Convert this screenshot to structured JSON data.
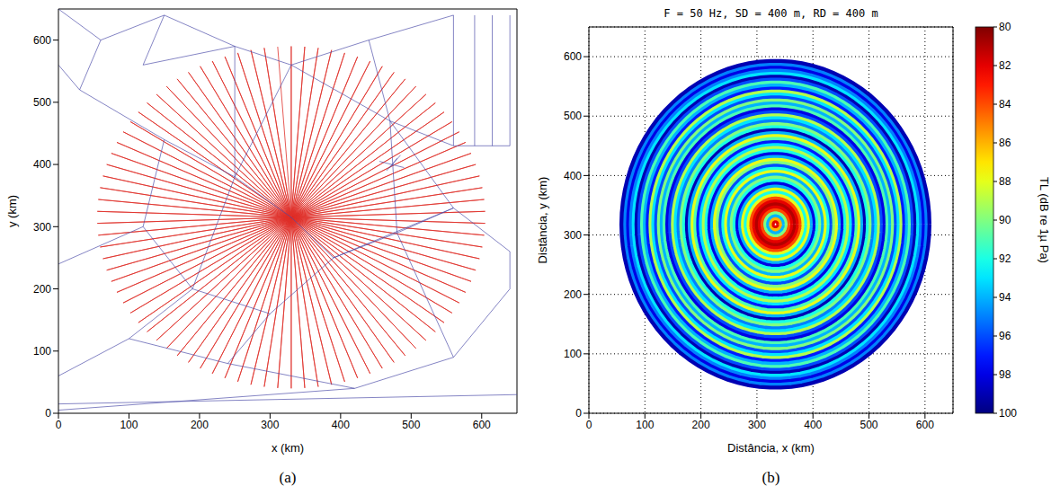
{
  "chart_data": [
    {
      "type": "mesh",
      "panel": "(a)",
      "x_label": "x (km)",
      "y_label": "y (km)",
      "xlim": [
        0,
        650
      ],
      "ylim": [
        0,
        650
      ],
      "xticks": [
        0,
        100,
        200,
        300,
        400,
        500,
        600
      ],
      "yticks": [
        0,
        100,
        200,
        300,
        400,
        500,
        600
      ],
      "grid": false,
      "radials": {
        "color": "#e0302a",
        "center": [
          330,
          315
        ],
        "radius": 275,
        "bearings": [
          0,
          4,
          8,
          12,
          16,
          20,
          24,
          28,
          32,
          36,
          40,
          44,
          48,
          52,
          56,
          60,
          64,
          68,
          72,
          76,
          80,
          84,
          88,
          92,
          96,
          100,
          104,
          108,
          112,
          116,
          120,
          124,
          128,
          132,
          136,
          140,
          144,
          148,
          152,
          156,
          160,
          164,
          168,
          172,
          176,
          180,
          184,
          188,
          192,
          196,
          200,
          204,
          208,
          212,
          216,
          220,
          224,
          228,
          232,
          236,
          240,
          244,
          248,
          252,
          256,
          260,
          264,
          268,
          272,
          276,
          280,
          284,
          288,
          292,
          296,
          300,
          304,
          308,
          312,
          316,
          320,
          324,
          328,
          332,
          336,
          340,
          344,
          348,
          352,
          356
        ]
      },
      "mesh": {
        "color": "#4a4aa8",
        "segments": [
          [
            0,
            650,
            60,
            600
          ],
          [
            60,
            600,
            30,
            520
          ],
          [
            30,
            520,
            0,
            560
          ],
          [
            60,
            600,
            150,
            640
          ],
          [
            150,
            640,
            250,
            590
          ],
          [
            250,
            590,
            330,
            560
          ],
          [
            330,
            560,
            440,
            600
          ],
          [
            440,
            600,
            560,
            640
          ],
          [
            560,
            640,
            560,
            430
          ],
          [
            560,
            430,
            640,
            430
          ],
          [
            640,
            430,
            640,
            640
          ],
          [
            590,
            430,
            590,
            640
          ],
          [
            615,
            430,
            615,
            640
          ],
          [
            560,
            430,
            470,
            470
          ],
          [
            470,
            470,
            330,
            560
          ],
          [
            470,
            470,
            560,
            330
          ],
          [
            560,
            330,
            640,
            260
          ],
          [
            560,
            330,
            480,
            290
          ],
          [
            480,
            290,
            470,
            470
          ],
          [
            480,
            290,
            390,
            250
          ],
          [
            390,
            250,
            330,
            315
          ],
          [
            330,
            315,
            250,
            380
          ],
          [
            250,
            380,
            150,
            440
          ],
          [
            150,
            440,
            30,
            520
          ],
          [
            150,
            440,
            120,
            300
          ],
          [
            120,
            300,
            0,
            240
          ],
          [
            120,
            300,
            190,
            200
          ],
          [
            190,
            200,
            300,
            160
          ],
          [
            300,
            160,
            390,
            250
          ],
          [
            300,
            160,
            240,
            80
          ],
          [
            240,
            80,
            100,
            120
          ],
          [
            100,
            120,
            0,
            60
          ],
          [
            100,
            120,
            190,
            200
          ],
          [
            240,
            80,
            420,
            40
          ],
          [
            420,
            40,
            560,
            90
          ],
          [
            560,
            90,
            640,
            200
          ],
          [
            560,
            90,
            480,
            290
          ],
          [
            640,
            200,
            640,
            260
          ],
          [
            0,
            15,
            650,
            30
          ],
          [
            0,
            5,
            420,
            40
          ],
          [
            250,
            380,
            250,
            590
          ],
          [
            250,
            380,
            330,
            560
          ],
          [
            470,
            470,
            440,
            600
          ],
          [
            190,
            200,
            250,
            380
          ],
          [
            390,
            250,
            560,
            330
          ],
          [
            150,
            640,
            120,
            560
          ],
          [
            120,
            560,
            250,
            590
          ],
          [
            455,
            405,
            490,
            395
          ],
          [
            465,
            390,
            485,
            415
          ],
          [
            470,
            395,
            480,
            410
          ]
        ]
      }
    },
    {
      "type": "heatmap",
      "panel": "(b)",
      "title": "F = 50 Hz, SD = 400 m, RD = 400 m",
      "x_label": "Distância, x (km)",
      "y_label": "Distância, y (km)",
      "xlim": [
        0,
        650
      ],
      "ylim": [
        0,
        650
      ],
      "xticks": [
        0,
        100,
        200,
        300,
        400,
        500,
        600
      ],
      "yticks": [
        0,
        100,
        200,
        300,
        400,
        500,
        600
      ],
      "grid": true,
      "field": {
        "center": [
          333,
          318
        ],
        "radius": [
          5,
          10,
          15,
          20,
          25,
          30,
          35,
          40,
          45,
          50,
          55,
          60,
          65,
          70,
          75,
          80,
          85,
          90,
          95,
          100,
          105,
          110,
          115,
          120,
          125,
          130,
          135,
          140,
          145,
          150,
          155,
          160,
          165,
          170,
          175,
          180,
          185,
          190,
          195,
          200,
          205,
          210,
          215,
          220,
          225,
          230,
          235,
          240,
          245,
          250,
          255,
          260,
          265,
          270,
          275
        ],
        "tl": [
          82,
          86,
          94,
          90,
          84,
          82,
          81,
          82,
          84,
          88,
          92,
          88,
          94,
          98,
          92,
          90,
          94,
          88,
          92,
          96,
          90,
          88,
          94,
          98,
          92,
          89,
          93,
          97,
          91,
          88,
          94,
          99,
          92,
          90,
          95,
          93,
          89,
          96,
          98,
          91,
          94,
          90,
          96,
          93,
          89,
          97,
          94,
          91,
          96,
          99,
          93,
          95,
          98,
          95,
          99
        ]
      },
      "colorbar": {
        "label": "TL (dB re 1µ Pa)",
        "lim": [
          80,
          100
        ],
        "ticks": [
          80,
          82,
          84,
          86,
          88,
          90,
          92,
          94,
          96,
          98,
          100
        ]
      }
    }
  ]
}
